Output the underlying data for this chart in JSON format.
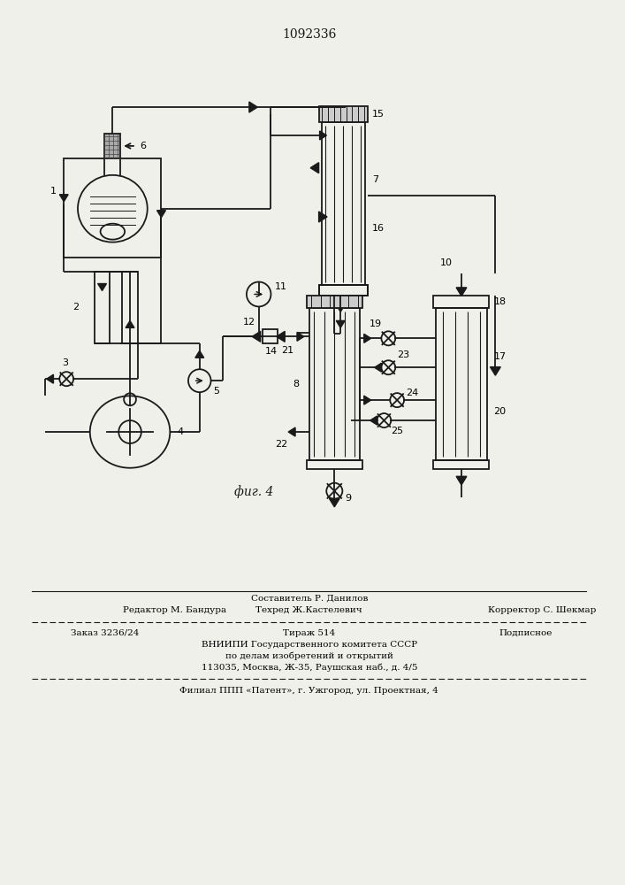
{
  "title": "1092336",
  "fig_label": "фиг. 4",
  "bg_color": "#f0f0eb",
  "line_color": "#1a1a1a",
  "footer_line0": "Составитель Р. Данилов",
  "footer_line1": "Редактор М. Бандура",
  "footer_line1b": "Техред Ж.Кастелевич",
  "footer_line1c": "Корректор С. Шекмар",
  "footer_line2a": "Заказ 3236/24",
  "footer_line2b": "Тираж 514",
  "footer_line2c": "Подписное",
  "footer_line3": "ВНИИПИ Государственного комитета СССР",
  "footer_line4": "по делам изобретений и открытий",
  "footer_line5": "113035, Москва, Ж-35, Раушская наб., д. 4/5",
  "footer_line6": "Филиал ППП «Патент», г. Ужгород, ул. Проектная, 4"
}
